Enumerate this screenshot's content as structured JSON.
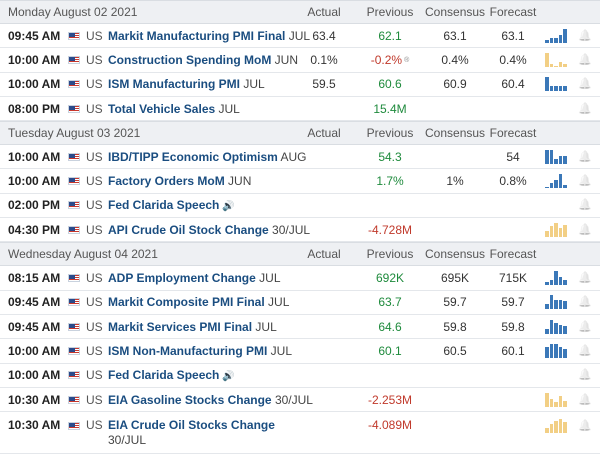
{
  "columns": {
    "actual": "Actual",
    "previous": "Previous",
    "consensus": "Consensus",
    "forecast": "Forecast"
  },
  "days": [
    {
      "date": "Monday August 02 2021",
      "events": [
        {
          "time": "09:45 AM",
          "country": "US",
          "name": "Markit Manufacturing PMI Final",
          "ref": "JUL",
          "actual": "63.4",
          "previous": "62.1",
          "previous_tone": "pos",
          "consensus": "63.1",
          "forecast": "63.1",
          "spark": [
            2,
            3,
            3,
            5,
            9
          ],
          "spark_color": "blue"
        },
        {
          "time": "10:00 AM",
          "country": "US",
          "name": "Construction Spending MoM",
          "ref": "JUN",
          "actual": "0.1%",
          "previous": "-0.2%",
          "previous_tone": "neg",
          "revised": "®",
          "consensus": "0.4%",
          "forecast": "0.4%",
          "spark": [
            9,
            2,
            0,
            3,
            2
          ],
          "spark_color": "orange"
        },
        {
          "time": "10:00 AM",
          "country": "US",
          "name": "ISM Manufacturing PMI",
          "ref": "JUL",
          "actual": "59.5",
          "previous": "60.6",
          "previous_tone": "pos",
          "consensus": "60.9",
          "forecast": "60.4",
          "spark": [
            9,
            3,
            3,
            3,
            3
          ],
          "spark_color": "blue"
        },
        {
          "time": "08:00 PM",
          "country": "US",
          "name": "Total Vehicle Sales",
          "ref": "JUL",
          "actual": "",
          "previous": "15.4M",
          "previous_tone": "pos",
          "consensus": "",
          "forecast": "",
          "spark": [],
          "spark_color": "blue"
        }
      ]
    },
    {
      "date": "Tuesday August 03 2021",
      "events": [
        {
          "time": "10:00 AM",
          "country": "US",
          "name": "IBD/TIPP Economic Optimism",
          "ref": "AUG",
          "actual": "",
          "previous": "54.3",
          "previous_tone": "pos",
          "consensus": "",
          "forecast": "54",
          "spark": [
            9,
            9,
            3,
            5,
            5
          ],
          "spark_color": "blue"
        },
        {
          "time": "10:00 AM",
          "country": "US",
          "name": "Factory Orders MoM",
          "ref": "JUN",
          "actual": "",
          "previous": "1.7%",
          "previous_tone": "pos",
          "consensus": "1%",
          "forecast": "0.8%",
          "spark": [
            0,
            3,
            5,
            9,
            2
          ],
          "spark_color": "blue"
        },
        {
          "time": "02:00 PM",
          "country": "US",
          "name": "Fed Clarida Speech",
          "ref": "",
          "speaker": "🔊",
          "actual": "",
          "previous": "",
          "previous_tone": "neu",
          "consensus": "",
          "forecast": "",
          "spark": [],
          "spark_color": "blue"
        },
        {
          "time": "04:30 PM",
          "country": "US",
          "name": "API Crude Oil Stock Change",
          "ref": "30/JUL",
          "actual": "",
          "previous": "-4.728M",
          "previous_tone": "neg",
          "consensus": "",
          "forecast": "",
          "spark": [
            4,
            7,
            9,
            6,
            8
          ],
          "spark_color": "orange"
        }
      ]
    },
    {
      "date": "Wednesday August 04 2021",
      "events": [
        {
          "time": "08:15 AM",
          "country": "US",
          "name": "ADP Employment Change",
          "ref": "JUL",
          "actual": "",
          "previous": "692K",
          "previous_tone": "pos",
          "consensus": "695K",
          "forecast": "715K",
          "spark": [
            2,
            3,
            9,
            5,
            3
          ],
          "spark_color": "blue"
        },
        {
          "time": "09:45 AM",
          "country": "US",
          "name": "Markit Composite PMI Final",
          "ref": "JUL",
          "actual": "",
          "previous": "63.7",
          "previous_tone": "pos",
          "consensus": "59.7",
          "forecast": "59.7",
          "spark": [
            3,
            9,
            6,
            6,
            5
          ],
          "spark_color": "blue"
        },
        {
          "time": "09:45 AM",
          "country": "US",
          "name": "Markit Services PMI Final",
          "ref": "JUL",
          "actual": "",
          "previous": "64.6",
          "previous_tone": "pos",
          "consensus": "59.8",
          "forecast": "59.8",
          "spark": [
            3,
            9,
            7,
            6,
            5
          ],
          "spark_color": "blue"
        },
        {
          "time": "10:00 AM",
          "country": "US",
          "name": "ISM Non-Manufacturing PMI",
          "ref": "JUL",
          "actual": "",
          "previous": "60.1",
          "previous_tone": "pos",
          "consensus": "60.5",
          "forecast": "60.1",
          "spark": [
            7,
            9,
            9,
            7,
            6
          ],
          "spark_color": "blue"
        },
        {
          "time": "10:00 AM",
          "country": "US",
          "name": "Fed Clarida Speech",
          "ref": "",
          "speaker": "🔊",
          "actual": "",
          "previous": "",
          "previous_tone": "neu",
          "consensus": "",
          "forecast": "",
          "spark": [],
          "spark_color": "blue"
        },
        {
          "time": "10:30 AM",
          "country": "US",
          "name": "EIA Gasoline Stocks Change",
          "ref": "30/JUL",
          "actual": "",
          "previous": "-2.253M",
          "previous_tone": "neg",
          "consensus": "",
          "forecast": "",
          "spark": [
            9,
            5,
            3,
            7,
            4
          ],
          "spark_color": "orange"
        },
        {
          "time": "10:30 AM",
          "country": "US",
          "name": "EIA Crude Oil Stocks Change",
          "ref": "30/JUL",
          "actual": "",
          "previous": "-4.089M",
          "previous_tone": "neg",
          "consensus": "",
          "forecast": "",
          "spark": [
            3,
            6,
            8,
            9,
            7
          ],
          "spark_color": "orange",
          "tall": true
        }
      ]
    }
  ],
  "icons": {
    "flag": "us-flag-icon",
    "bell": "bell-icon",
    "chart": "mini-bar-chart-icon",
    "speaker": "speaker-icon"
  },
  "colors": {
    "positive": "#1e8a3c",
    "negative": "#c0392b",
    "link": "#1a4d80",
    "spark_blue": "#3b78b8",
    "spark_orange": "#f2cf85"
  }
}
